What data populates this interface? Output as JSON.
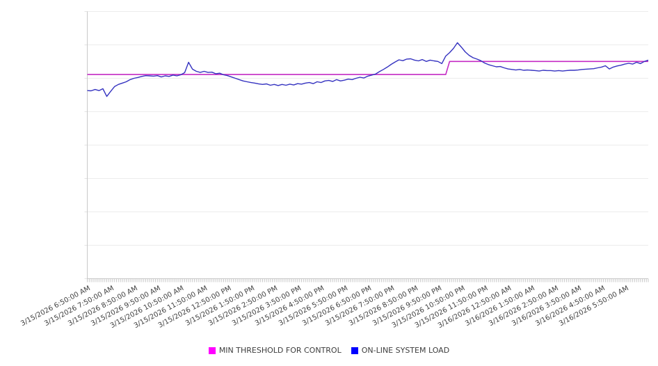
{
  "legend": {
    "position": "bottom-center",
    "items": [
      {
        "label": "MIN THRESHOLD FOR CONTROL",
        "color": "#ff00ff"
      },
      {
        "label": "ON-LINE SYSTEM LOAD",
        "color": "#0000ff"
      }
    ]
  },
  "chart_data": {
    "type": "line",
    "title": "",
    "xlabel": "",
    "ylabel": "",
    "y_units": "unlabeled axis; values estimated as % of plot height",
    "x_axis": {
      "labels": [
        "3/15/2026 6:50:00 AM",
        "3/15/2026 7:50:00 AM",
        "3/15/2026 8:50:00 AM",
        "3/15/2026 9:50:00 AM",
        "3/15/2026 10:50:00 AM",
        "3/15/2026 11:50:00 AM",
        "3/15/2026 12:50:00 PM",
        "3/15/2026 1:50:00 PM",
        "3/15/2026 2:50:00 PM",
        "3/15/2026 3:50:00 PM",
        "3/15/2026 4:50:00 PM",
        "3/15/2026 5:50:00 PM",
        "3/15/2026 6:50:00 PM",
        "3/15/2026 7:50:00 PM",
        "3/15/2026 8:50:00 PM",
        "3/15/2026 9:50:00 PM",
        "3/15/2026 10:50:00 PM",
        "3/15/2026 11:50:00 PM",
        "3/16/2026 12:50:00 AM",
        "3/16/2026 1:50:00 AM",
        "3/16/2026 2:50:00 AM",
        "3/16/2026 3:50:00 AM",
        "3/16/2026 4:50:00 AM",
        "3/16/2026 5:50:00 AM"
      ],
      "label_interval": "1 hour",
      "label_rotation_deg": -28,
      "minor_tick_count": 288
    },
    "y_axis": {
      "tick_labels_visible": false,
      "ylim": [
        0,
        100
      ],
      "gridlines": true,
      "gridline_count": 9
    },
    "series": [
      {
        "name": "MIN THRESHOLD FOR CONTROL",
        "type": "step-line",
        "line_color": "#c42ac4",
        "legend_color": "#ff00ff",
        "value_before_step": 76.4,
        "value_after_step": 81.3,
        "step_between_points": [
          92,
          93
        ]
      },
      {
        "name": "ON-LINE SYSTEM LOAD",
        "type": "line",
        "line_color": "#3432c0",
        "legend_color": "#0000ff",
        "start": "3/15/2026 6:50:00 AM",
        "interval_minutes": 10,
        "values": [
          70.4,
          70.3,
          70.8,
          70.4,
          71.1,
          68.2,
          70.1,
          71.9,
          72.7,
          73.2,
          73.7,
          74.5,
          75.0,
          75.3,
          75.7,
          76.0,
          75.9,
          75.8,
          76.0,
          75.5,
          75.9,
          75.7,
          76.2,
          75.9,
          76.3,
          77.1,
          81.0,
          78.4,
          77.6,
          77.2,
          77.6,
          77.2,
          77.3,
          76.7,
          76.9,
          76.3,
          76.0,
          75.5,
          75.0,
          74.5,
          74.0,
          73.7,
          73.4,
          73.2,
          72.9,
          72.7,
          72.9,
          72.4,
          72.7,
          72.3,
          72.7,
          72.4,
          72.8,
          72.5,
          73.0,
          72.8,
          73.2,
          73.4,
          73.0,
          73.7,
          73.4,
          74.0,
          74.2,
          73.8,
          74.5,
          74.0,
          74.3,
          74.7,
          74.5,
          75.0,
          75.4,
          75.1,
          75.8,
          76.2,
          76.6,
          77.5,
          78.3,
          79.2,
          80.2,
          81.1,
          81.9,
          81.6,
          82.2,
          82.3,
          81.8,
          81.5,
          82.0,
          81.3,
          81.8,
          81.5,
          81.3,
          80.5,
          83.3,
          84.6,
          86.2,
          88.3,
          86.7,
          84.9,
          83.6,
          82.7,
          82.2,
          81.6,
          80.7,
          80.1,
          79.7,
          79.3,
          79.4,
          78.9,
          78.5,
          78.3,
          78.1,
          78.3,
          78.0,
          78.1,
          78.0,
          77.9,
          77.7,
          78.0,
          77.9,
          77.9,
          77.7,
          77.9,
          77.7,
          77.9,
          78.0,
          78.0,
          78.1,
          78.3,
          78.4,
          78.5,
          78.6,
          78.9,
          79.2,
          79.7,
          78.5,
          79.2,
          79.6,
          79.9,
          80.3,
          80.6,
          80.3,
          81.0,
          80.5,
          81.3,
          81.8
        ]
      }
    ],
    "legend_position": "bottom",
    "colors": {
      "gridline": "#ececec",
      "axis": "#c9c9c9",
      "tick": "#c9c9c9",
      "label_text": "#3f3f3f",
      "legend_text": "#3d3d3d",
      "background": "#ffffff"
    }
  }
}
